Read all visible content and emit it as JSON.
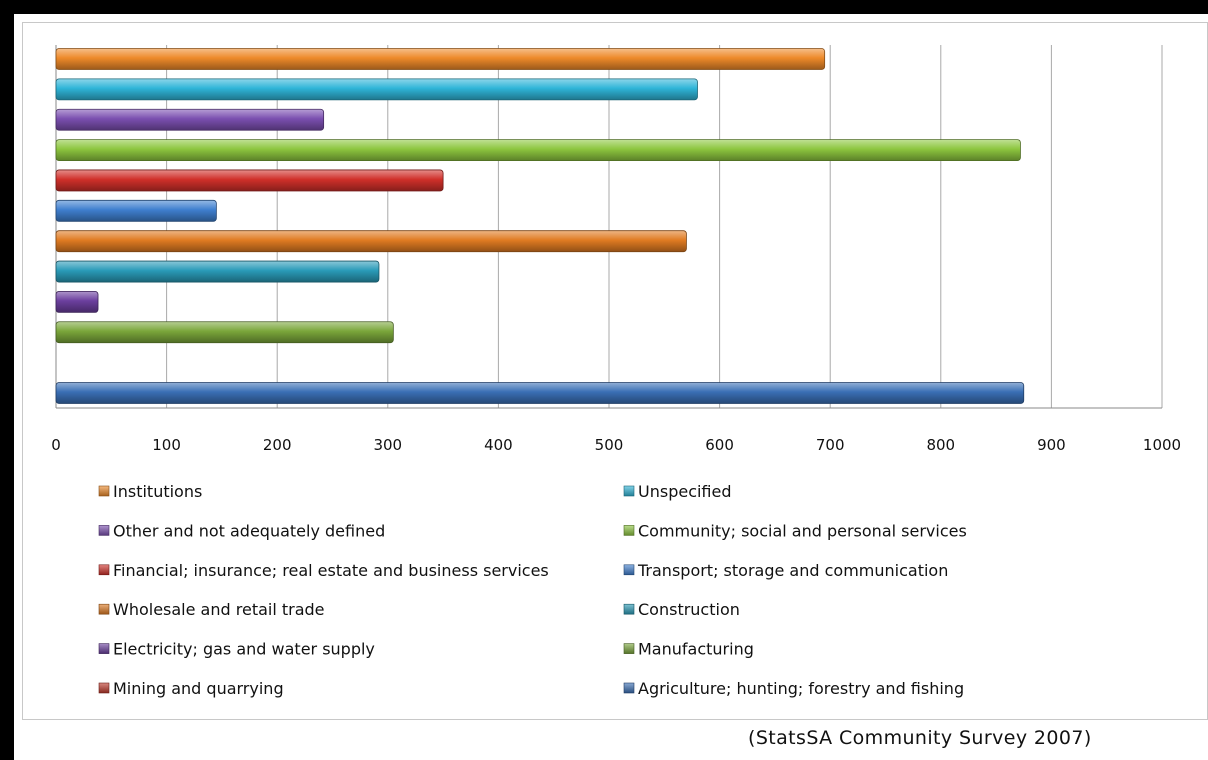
{
  "chart_data": {
    "type": "bar",
    "orientation": "horizontal",
    "xlim": [
      0,
      1000
    ],
    "ticks": [
      "0",
      "100",
      "200",
      "300",
      "400",
      "500",
      "600",
      "700",
      "800",
      "900",
      "1000"
    ],
    "grid": "vertical",
    "legend_placement": "bottom",
    "series": [
      {
        "name": "Agriculture; hunting; forestry and fishing",
        "value": 875,
        "color": "#3a6fb5"
      },
      {
        "name": "Mining and quarrying",
        "value": null,
        "color": "#c0392b"
      },
      {
        "name": "Manufacturing",
        "value": 305,
        "color": "#7aa63a"
      },
      {
        "name": "Electricity; gas and water supply",
        "value": 38,
        "color": "#6b3f9e"
      },
      {
        "name": "Construction",
        "value": 292,
        "color": "#2a9bb8"
      },
      {
        "name": "Wholesale and retail trade",
        "value": 570,
        "color": "#e07b22"
      },
      {
        "name": "Transport; storage and communication",
        "value": 145,
        "color": "#3f7fcf"
      },
      {
        "name": "Financial; insurance; real estate and business services",
        "value": 350,
        "color": "#d0302a"
      },
      {
        "name": "Community; social and personal services",
        "value": 872,
        "color": "#8dc63f"
      },
      {
        "name": "Other and not adequately defined",
        "value": 242,
        "color": "#7b4fb0"
      },
      {
        "name": "Unspecified",
        "value": 580,
        "color": "#2fb5d8"
      },
      {
        "name": "Institutions",
        "value": 695,
        "color": "#ee8a2a"
      }
    ]
  },
  "legend": {
    "left": [
      "Institutions",
      "Other and not adequately defined",
      "Financial; insurance; real estate and business services",
      "Wholesale and retail trade",
      "Electricity; gas and water supply",
      "Mining and quarrying"
    ],
    "right": [
      "Unspecified",
      "Community; social and personal services",
      "Transport; storage and communication",
      "Construction",
      "Manufacturing",
      "Agriculture; hunting; forestry and fishing"
    ]
  },
  "source": "(StatsSA Community Survey 2007)"
}
